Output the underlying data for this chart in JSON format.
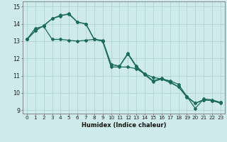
{
  "xlabel": "Humidex (Indice chaleur)",
  "bg_color": "#ceeaea",
  "line_color": "#1a6b5a",
  "grid_color": "#aed4d4",
  "xlim": [
    -0.5,
    23.5
  ],
  "ylim": [
    8.8,
    15.3
  ],
  "xticks": [
    0,
    1,
    2,
    3,
    4,
    5,
    6,
    7,
    8,
    9,
    10,
    11,
    12,
    13,
    14,
    15,
    16,
    17,
    18,
    19,
    20,
    21,
    22,
    23
  ],
  "yticks": [
    9,
    10,
    11,
    12,
    13,
    14,
    15
  ],
  "series1_x": [
    0,
    1,
    2,
    3,
    4,
    5,
    6,
    7,
    8,
    9,
    10,
    11,
    12,
    13,
    14,
    15,
    16,
    17,
    18,
    19,
    20,
    21,
    22,
    23
  ],
  "series1_y": [
    13.1,
    13.75,
    13.85,
    13.1,
    13.1,
    13.05,
    13.0,
    13.05,
    13.1,
    13.0,
    11.5,
    11.5,
    11.5,
    11.4,
    11.1,
    10.9,
    10.8,
    10.7,
    10.5,
    9.8,
    9.4,
    9.6,
    9.55,
    9.45
  ],
  "series2_x": [
    0,
    1,
    2,
    3,
    4,
    5,
    6,
    7,
    8,
    9,
    10,
    11,
    12,
    13,
    14,
    15,
    16,
    17,
    18,
    19,
    20,
    21,
    22,
    23
  ],
  "series2_y": [
    13.1,
    13.6,
    13.9,
    14.3,
    14.45,
    14.6,
    14.1,
    14.0,
    13.1,
    13.05,
    11.65,
    11.55,
    12.3,
    11.55,
    11.1,
    10.7,
    10.85,
    10.65,
    10.35,
    9.8,
    9.1,
    9.65,
    9.6,
    9.45
  ],
  "series3_x": [
    0,
    1,
    2,
    3,
    4,
    5,
    6,
    7,
    8,
    9,
    10,
    11,
    12,
    13,
    14,
    15,
    16,
    17,
    18,
    19,
    20,
    21,
    22,
    23
  ],
  "series3_y": [
    13.1,
    13.6,
    13.9,
    14.3,
    14.5,
    14.55,
    14.1,
    14.0,
    13.1,
    13.0,
    11.65,
    11.55,
    12.25,
    11.5,
    11.05,
    10.65,
    10.8,
    10.6,
    10.35,
    9.75,
    9.4,
    9.6,
    9.55,
    9.4
  ],
  "xlabel_fontsize": 6.0,
  "tick_fontsize": 5.2,
  "ytick_fontsize": 5.8
}
